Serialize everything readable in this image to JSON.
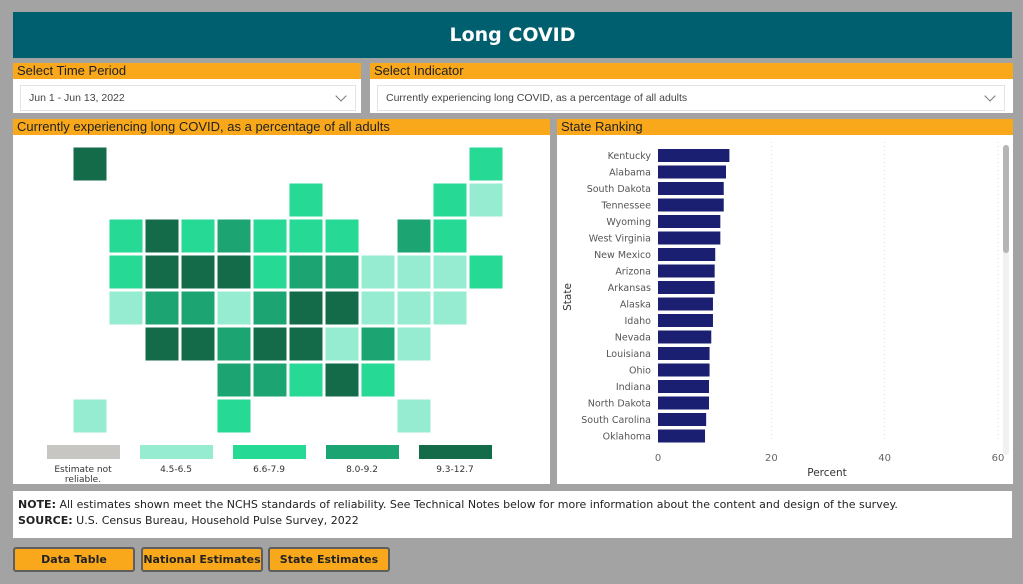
{
  "header": {
    "title": "Long COVID"
  },
  "time_period": {
    "label": "Select Time Period",
    "value": "Jun 1 - Jun 13, 2022"
  },
  "indicator": {
    "label": "Select Indicator",
    "value": "Currently experiencing long COVID, as a percentage of all adults"
  },
  "map_panel": {
    "title": "Currently experiencing long COVID, as a percentage of all adults",
    "legend": [
      {
        "label": "Estimate not reliable.",
        "color": "#c8c6c3"
      },
      {
        "label": "4.5-6.5",
        "color": "#96ecd0"
      },
      {
        "label": "6.6-7.9",
        "color": "#26d994"
      },
      {
        "label": "8.0-9.2",
        "color": "#1ca572"
      },
      {
        "label": "9.3-12.7",
        "color": "#136b4a"
      }
    ],
    "map_levels": {
      "WA": 2,
      "OR": 2,
      "CA": 1,
      "NV": 4,
      "ID": 4,
      "MT": 2,
      "WY": 4,
      "UT": 3,
      "CO": 3,
      "AZ": 4,
      "NM": 4,
      "ND": 3,
      "SD": 4,
      "NE": 1,
      "KS": 3,
      "OK": 3,
      "TX": 2,
      "MN": 2,
      "IA": 2,
      "MO": 3,
      "AR": 4,
      "LA": 3,
      "WI": 2,
      "IL": 2,
      "MI": 2,
      "IN": 3,
      "OH": 3,
      "KY": 4,
      "TN": 4,
      "MS": 2,
      "AL": 4,
      "GA": 2,
      "FL": 1,
      "SC": 3,
      "NC": 1,
      "VA": 1,
      "WV": 4,
      "PA": 1,
      "NY": 3,
      "VT": 2,
      "NH": 1,
      "ME": 2,
      "MA": 2,
      "CT": 1,
      "RI": 2,
      "NJ": 1,
      "DE": 1,
      "MD": 1,
      "DC": 1,
      "AK": 4,
      "HI": 1
    }
  },
  "ranking_panel": {
    "title": "State Ranking"
  },
  "chart_data": {
    "type": "bar",
    "orientation": "horizontal",
    "xlabel": "Percent",
    "ylabel": "State",
    "xlim": [
      0,
      60
    ],
    "xticks": [
      "0",
      "20",
      "40",
      "60"
    ],
    "bar_color": "#1a1f71",
    "categories": [
      "Kentucky",
      "Alabama",
      "South Dakota",
      "Tennessee",
      "Wyoming",
      "West Virginia",
      "New Mexico",
      "Arizona",
      "Arkansas",
      "Alaska",
      "Idaho",
      "Nevada",
      "Louisiana",
      "Ohio",
      "Indiana",
      "North Dakota",
      "South Carolina",
      "Oklahoma"
    ],
    "values": [
      12.6,
      12.0,
      11.6,
      11.6,
      11.0,
      11.0,
      10.1,
      10.0,
      10.0,
      9.7,
      9.7,
      9.4,
      9.1,
      9.1,
      9.0,
      9.0,
      8.5,
      8.3
    ]
  },
  "note": {
    "note_label": "NOTE:",
    "note_text": " All estimates shown meet the NCHS standards of reliability. See Technical Notes below for more information about the content and design of the survey.",
    "source_label": "SOURCE:",
    "source_text": " U.S. Census Bureau, Household Pulse Survey, 2022"
  },
  "buttons": {
    "data_table": "Data Table",
    "national": "National Estimates",
    "state": "State Estimates"
  }
}
